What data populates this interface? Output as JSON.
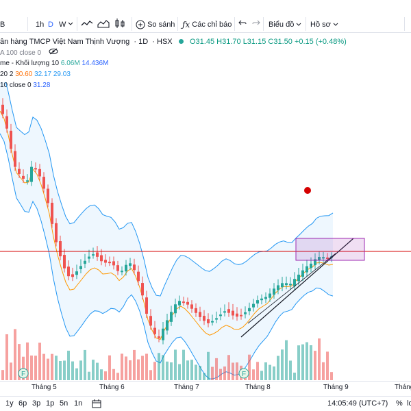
{
  "toolbar": {
    "symbol_tail": "B",
    "intervals": [
      "1h",
      "D",
      "W"
    ],
    "active_interval": "D",
    "compare_label": "So sánh",
    "indicators_label": "Các chỉ báo",
    "layout_label": "Biểu đồ",
    "profile_label": "Hồ sơ"
  },
  "legend": {
    "name": "ân hàng TMCP Việt Nam Thịnh Vượng",
    "interval": "1D",
    "exchange": "HSX",
    "open": "O31.45",
    "high": "H31.70",
    "low": "L31.15",
    "close": "C31.50",
    "change": "+0.15 (+0.48%)",
    "ma100": "A 100 close 0",
    "volume_label": "me - Khối lượng 10",
    "volume_v1": "6.06M",
    "volume_v2": "14.436M",
    "bb_label": "20 2",
    "bb_v1": "30.60",
    "bb_v2": "32.17",
    "bb_v3": "29.03",
    "ema_label": "10 close 0",
    "ema_v1": "31.28"
  },
  "xaxis": {
    "labels": [
      "Tháng 5",
      "Tháng 6",
      "Tháng 7",
      "Tháng 8",
      "Tháng 9",
      "Tháng"
    ]
  },
  "bottombar": {
    "ranges": [
      "1y",
      "6p",
      "3p",
      "1p",
      "5n",
      "1n"
    ],
    "time": "14:05:49 (UTC+7)",
    "percent": "%",
    "log": "lo"
  },
  "colors": {
    "up": "#26a69a",
    "down": "#ef5350",
    "band": "#2196f3",
    "ma": "#ff9800",
    "resistance": "#d50000",
    "box": "#9c27b0"
  },
  "chart_data": {
    "type": "candlestick",
    "resistance_level": "horizontal red line near 31.0",
    "markers": [
      "F",
      "F"
    ]
  }
}
